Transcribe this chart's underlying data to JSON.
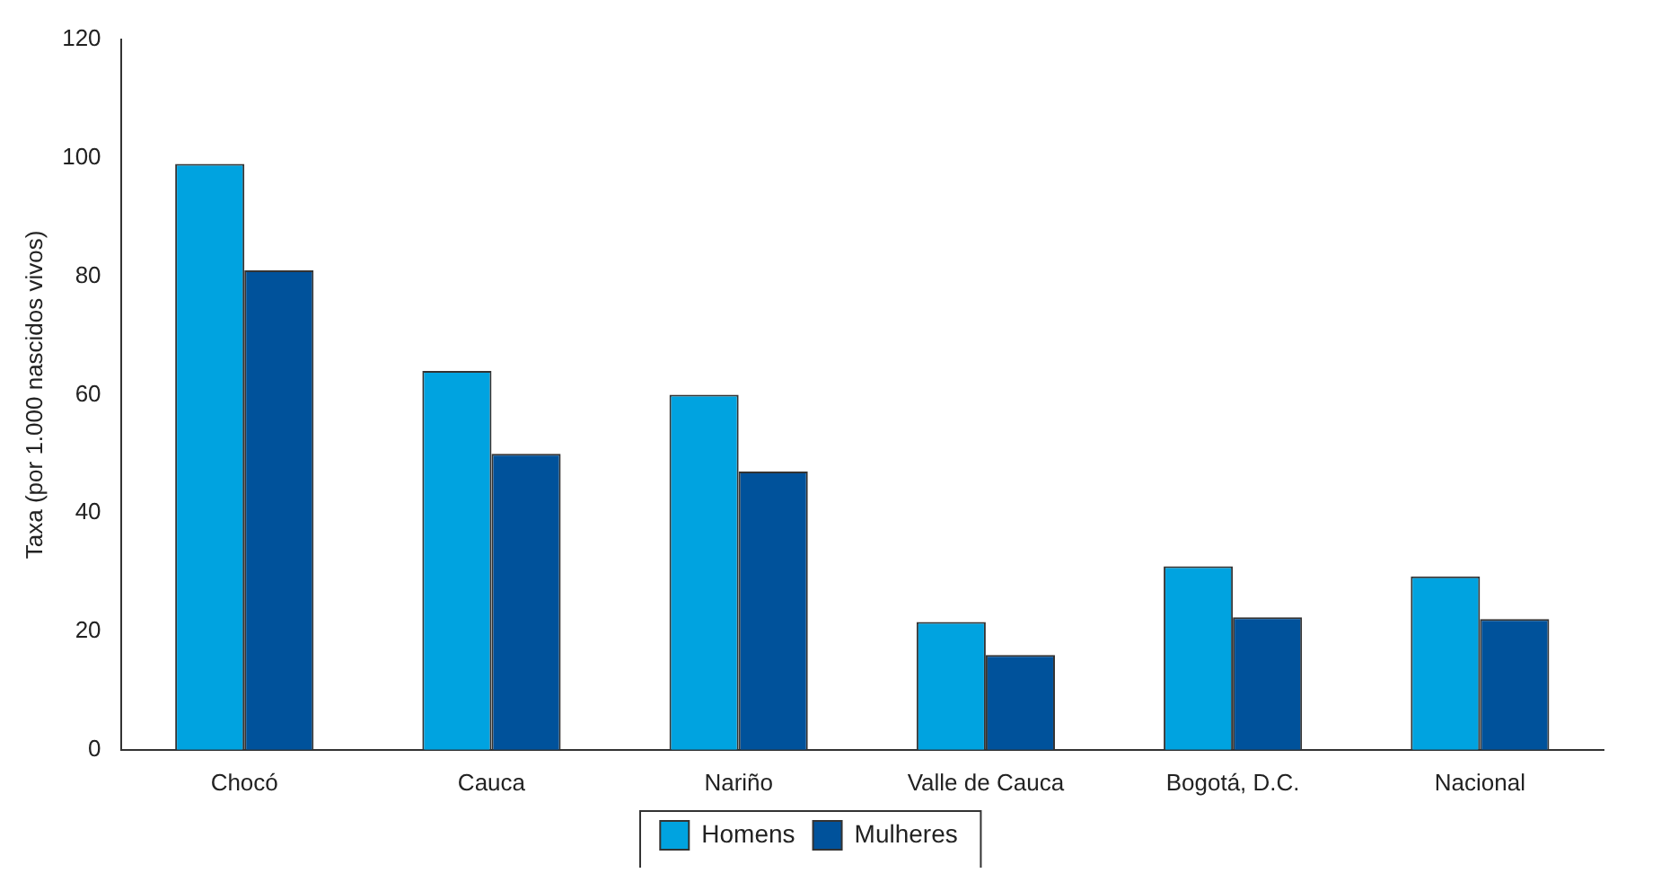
{
  "chart_data": {
    "type": "bar",
    "ylabel": "Taxa (por 1.000 nascidos vivos)",
    "categories": [
      "Chocó",
      "Cauca",
      "Nariño",
      "Valle de Cauca",
      "Bogotá, D.C.",
      "Nacional"
    ],
    "series": [
      {
        "name": "Homens",
        "color": "#00a3e0",
        "values": [
          99,
          64,
          60,
          21.6,
          31,
          29.3
        ]
      },
      {
        "name": "Mulheres",
        "color": "#00529b",
        "values": [
          81,
          50,
          47,
          16,
          22.4,
          22.1
        ]
      }
    ],
    "ylim": [
      0,
      120
    ],
    "yticks": [
      0,
      20,
      40,
      60,
      80,
      100,
      120
    ],
    "grid": false,
    "legend": "bottom"
  }
}
